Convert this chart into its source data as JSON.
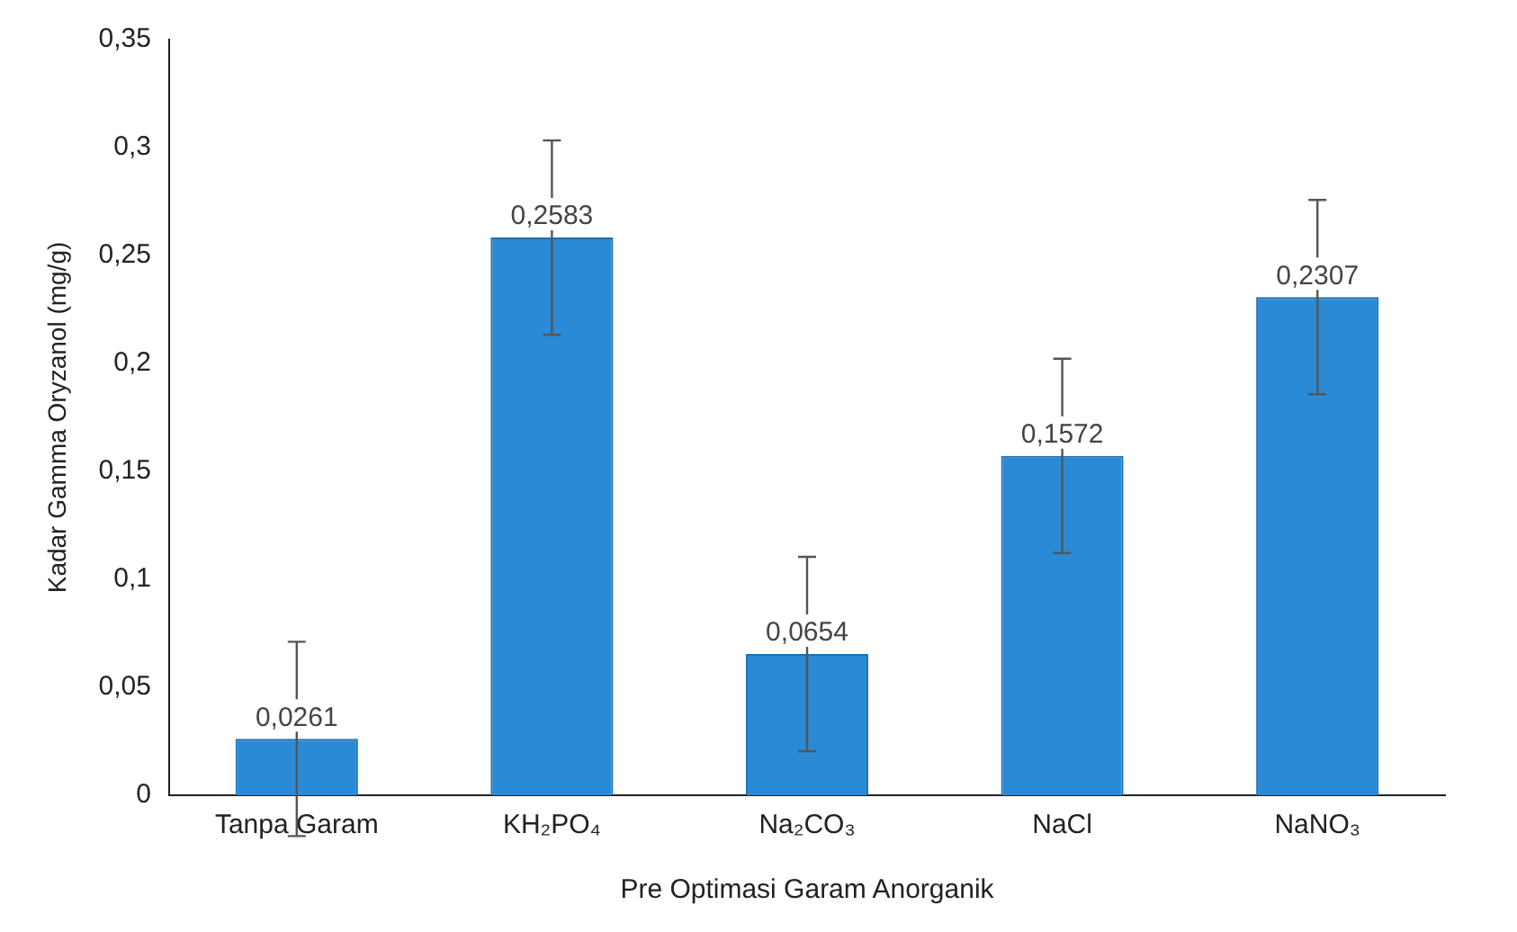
{
  "chart_data": {
    "type": "bar",
    "xlabel": "Pre Optimasi Garam Anorganik",
    "ylabel": "Kadar Gamma Oryzanol (mg/g)",
    "categories": [
      "Tanpa Garam",
      "KH₂PO₄",
      "Na₂CO₃",
      "NaCl",
      "NaNO₃"
    ],
    "values": [
      0.0261,
      0.2583,
      0.0654,
      0.1572,
      0.2307
    ],
    "value_labels": [
      "0,0261",
      "0,2583",
      "0,0654",
      "0,1572",
      "0,2307"
    ],
    "errors": [
      0.045,
      0.045,
      0.045,
      0.045,
      0.045
    ],
    "color": "#2b8ad6",
    "ylim": [
      0,
      0.35
    ],
    "yticks": [
      {
        "value": 0,
        "label": "0"
      },
      {
        "value": 0.05,
        "label": "0,05"
      },
      {
        "value": 0.1,
        "label": "0,1"
      },
      {
        "value": 0.15,
        "label": "0,15"
      },
      {
        "value": 0.2,
        "label": "0,2"
      },
      {
        "value": 0.25,
        "label": "0,25"
      },
      {
        "value": 0.3,
        "label": "0,3"
      },
      {
        "value": 0.35,
        "label": "0,35"
      }
    ],
    "grid": false,
    "legend": false
  }
}
